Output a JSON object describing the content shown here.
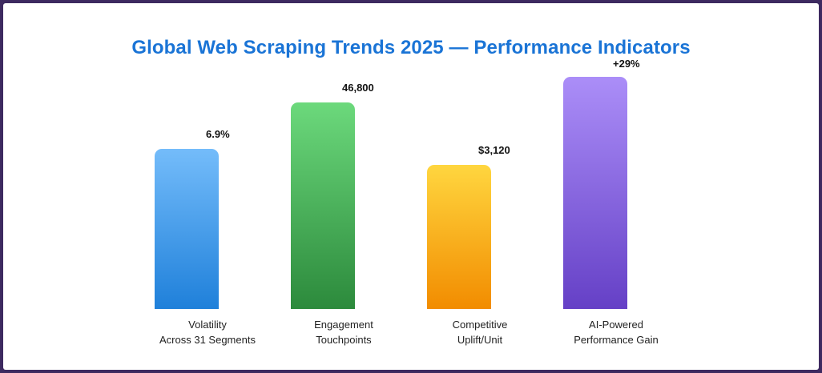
{
  "chart_data": {
    "type": "bar",
    "title": "Global Web Scraping Trends 2025 — Performance Indicators",
    "xlabel": "",
    "ylabel": "",
    "bars": [
      {
        "label_lines": [
          "Volatility",
          "Across 31 Segments"
        ],
        "value_label": "6.9%",
        "relative_height": 0.69,
        "color_top": "#74bcfa",
        "color_bottom": "#1f80da"
      },
      {
        "label_lines": [
          "Engagement",
          "Touchpoints"
        ],
        "value_label": "46,800",
        "relative_height": 0.89,
        "color_top": "#6cd97c",
        "color_bottom": "#2c8a3c"
      },
      {
        "label_lines": [
          "Competitive",
          "Uplift/Unit"
        ],
        "value_label": "$3,120",
        "relative_height": 0.62,
        "color_top": "#ffd63f",
        "color_bottom": "#f28c00"
      },
      {
        "label_lines": [
          "AI-Powered",
          "Performance Gain"
        ],
        "value_label": "+29%",
        "relative_height": 1.0,
        "color_top": "#ab8ef8",
        "color_bottom": "#6540c6"
      }
    ]
  }
}
